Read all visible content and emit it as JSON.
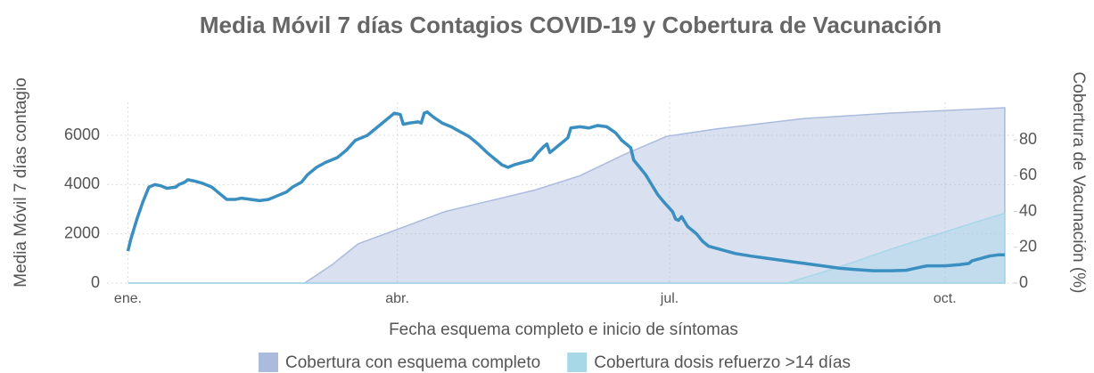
{
  "chart_data": {
    "type": "line",
    "title": "Media Móvil 7 días Contagios COVID-19 y Cobertura de Vacunación",
    "x_label": "Fecha esquema completo e inicio de síntomas",
    "y_label": "Media Móvil 7 días contagio",
    "y2_label": "Cobertura de Vacunación (%)",
    "xlim": [
      -7,
      296
    ],
    "xticks": [
      {
        "value": 0,
        "label": "ene."
      },
      {
        "value": 90,
        "label": "abr."
      },
      {
        "value": 181,
        "label": "jul."
      },
      {
        "value": 273,
        "label": "oct."
      }
    ],
    "ylim": [
      0,
      7340
    ],
    "yticks": [
      0,
      2000,
      4000,
      6000
    ],
    "y2lim": [
      0,
      101
    ],
    "y2ticks": [
      0,
      20,
      40,
      60,
      80
    ],
    "grid": true,
    "legend": "bottom",
    "series": [
      {
        "name": "Cobertura con esquema completo",
        "color": "#aabbdd",
        "axis": "y2",
        "kind": "area",
        "x": [
          0,
          59,
          68,
          77,
          90,
          106,
          121,
          136,
          151,
          166,
          180,
          196,
          226,
          255,
          293
        ],
        "values": [
          0,
          0,
          10,
          22,
          30,
          40,
          46,
          52,
          60,
          72,
          82,
          86,
          92,
          95,
          98
        ]
      },
      {
        "name": "Cobertura dosis refuerzo >14 días",
        "color": "#a6d8e8",
        "axis": "y2",
        "kind": "area",
        "x": [
          0,
          220,
          232,
          243,
          255,
          270,
          285,
          293
        ],
        "values": [
          0,
          0,
          6,
          12,
          19,
          27,
          35,
          39
        ]
      },
      {
        "color": "#3a8fc0",
        "kind": "line",
        "x": [
          0,
          1,
          3,
          5,
          6,
          7,
          9,
          11,
          13,
          16,
          17,
          19,
          20,
          22,
          25,
          28,
          30,
          33,
          36,
          38,
          41,
          44,
          47,
          50,
          53,
          55,
          58,
          60,
          63,
          66,
          70,
          73,
          76,
          80,
          82,
          84,
          86,
          88,
          89,
          91,
          92,
          94,
          97,
          98,
          99,
          100,
          102,
          105,
          108,
          111,
          114,
          117,
          120,
          123,
          125,
          127,
          129,
          132,
          135,
          137,
          139,
          140,
          141,
          143,
          145,
          147,
          148,
          151,
          154,
          157,
          160,
          163,
          165,
          168,
          169,
          171,
          173,
          175,
          177,
          179,
          182,
          183,
          184,
          185,
          187,
          190,
          192,
          194,
          197,
          200,
          203,
          208,
          214,
          220,
          226,
          232,
          238,
          243,
          249,
          255,
          260,
          263,
          267,
          273,
          278,
          281,
          282,
          285,
          288,
          291,
          293
        ],
        "values": [
          1300,
          1800,
          2600,
          3300,
          3600,
          3900,
          4000,
          3950,
          3850,
          3900,
          4000,
          4100,
          4200,
          4150,
          4050,
          3900,
          3700,
          3400,
          3400,
          3450,
          3400,
          3350,
          3400,
          3550,
          3700,
          3900,
          4100,
          4400,
          4700,
          4900,
          5100,
          5400,
          5800,
          6000,
          6200,
          6400,
          6600,
          6800,
          6900,
          6850,
          6450,
          6500,
          6550,
          6500,
          6900,
          6950,
          6750,
          6500,
          6350,
          6150,
          5950,
          5650,
          5300,
          5000,
          4800,
          4700,
          4800,
          4900,
          5000,
          5300,
          5550,
          5650,
          5300,
          5500,
          5700,
          5900,
          6300,
          6350,
          6300,
          6400,
          6350,
          6100,
          5800,
          5500,
          5000,
          4700,
          4400,
          4000,
          3600,
          3300,
          2900,
          2600,
          2550,
          2700,
          2300,
          2000,
          1700,
          1500,
          1400,
          1300,
          1200,
          1100,
          1000,
          900,
          800,
          700,
          600,
          550,
          500,
          500,
          520,
          600,
          700,
          700,
          750,
          800,
          900,
          1000,
          1100,
          1150,
          1150
        ]
      }
    ]
  }
}
